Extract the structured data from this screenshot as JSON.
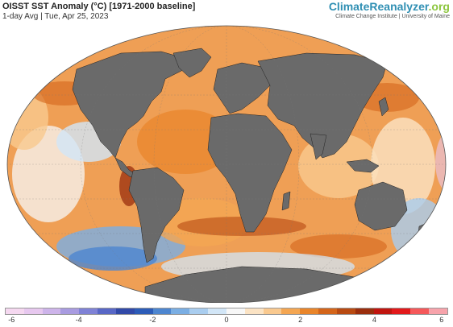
{
  "header": {
    "title": "OISST SST Anomaly (°C) [1971-2000 baseline]",
    "subtitle": "1-day Avg | Tue, Apr 25, 2023"
  },
  "brand": {
    "name_part1": "ClimateReanalyzer",
    "name_part2": ".org",
    "tagline": "Climate Change Institute | University of Maine"
  },
  "colorbar": {
    "ticks": [
      "-6",
      "-4",
      "-2",
      "0",
      "2",
      "4",
      "6"
    ],
    "colors": [
      "#f5d8f0",
      "#e7c8ef",
      "#cdb4ea",
      "#a89be0",
      "#7f82d6",
      "#5867c6",
      "#3149a8",
      "#2c5cb8",
      "#4d86d0",
      "#7aaee3",
      "#a9cdef",
      "#d2e6f7",
      "#f7f7f7",
      "#fbe3c4",
      "#f9c98f",
      "#f4a652",
      "#e9852a",
      "#d4651a",
      "#b84a12",
      "#9a2e0d",
      "#c0150f",
      "#e2191b",
      "#f5585a",
      "#f7a3ab"
    ]
  },
  "map": {
    "ocean_color": "#ef9f55",
    "land_color": "#6a6a6a"
  }
}
